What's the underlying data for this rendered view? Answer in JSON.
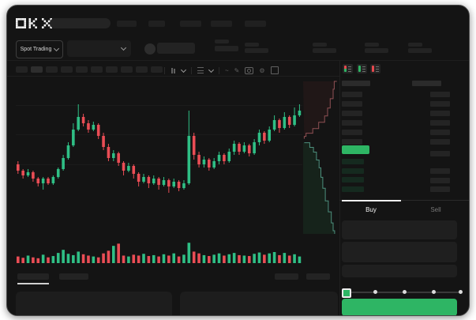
{
  "header": {
    "logo_text": "OKX",
    "search_placeholder": "",
    "nav_pill_count": 5
  },
  "market_bar": {
    "market_type_label": "Spot Trading",
    "chevron_icon": "chevron-down"
  },
  "chart_toolbar": {
    "timeframe_pill_count": 10,
    "active_pill_index": 1,
    "icons": [
      "candle-type-icon",
      "chevron-down-icon",
      "indicators-icon",
      "chevron-down-icon",
      "line-style-icon",
      "draw-icon",
      "camera-icon",
      "settings-icon",
      "fullscreen-icon"
    ]
  },
  "order_book": {
    "display_mode_icons": [
      "book-both-icon",
      "book-bids-icon",
      "book-asks-icon"
    ],
    "ask_row_count": 6,
    "bid_row_count": 4,
    "bid_right_row_count": 3,
    "has_last_price_highlight": true
  },
  "trade_panel": {
    "tabs": [
      {
        "label": "Buy",
        "active": true
      },
      {
        "label": "Sell",
        "active": false
      }
    ],
    "input_box_count": 3,
    "slider": {
      "positions": 5,
      "selected_index": 0
    },
    "submit_button_label": ""
  },
  "bottom_bar": {
    "tab_pill_count": 2,
    "active_tab_index": 0,
    "right_pill_count": 2,
    "panel_count": 2
  },
  "colors": {
    "app_bg": "#141414",
    "accent_green": "#2eb564",
    "candle_up": "#2fbf85",
    "candle_down": "#ea4d55",
    "depth_ask_line": "#8f5054",
    "depth_bid_line": "#4d8f7d",
    "bid_tint": "#152a1f",
    "placeholder": "#232323"
  },
  "chart_data": [
    {
      "type": "candlestick",
      "title": "",
      "axis_labels_visible": false,
      "unit": "relative-price-0-100",
      "candles_ohlc": [
        [
          44,
          46,
          38,
          40
        ],
        [
          40,
          41,
          35,
          37
        ],
        [
          37,
          41,
          36,
          39
        ],
        [
          39,
          40,
          33,
          35
        ],
        [
          35,
          36,
          30,
          32
        ],
        [
          32,
          36,
          28,
          35
        ],
        [
          35,
          36,
          31,
          32
        ],
        [
          32,
          37,
          31,
          36
        ],
        [
          36,
          42,
          35,
          41
        ],
        [
          41,
          50,
          40,
          48
        ],
        [
          48,
          58,
          47,
          56
        ],
        [
          56,
          70,
          55,
          66
        ],
        [
          66,
          82,
          65,
          74
        ],
        [
          74,
          76,
          68,
          70
        ],
        [
          70,
          72,
          64,
          66
        ],
        [
          66,
          71,
          65,
          69
        ],
        [
          69,
          70,
          60,
          62
        ],
        [
          62,
          64,
          53,
          55
        ],
        [
          55,
          57,
          46,
          48
        ],
        [
          48,
          53,
          46,
          51
        ],
        [
          51,
          52,
          43,
          45
        ],
        [
          45,
          46,
          37,
          40
        ],
        [
          40,
          45,
          39,
          43
        ],
        [
          43,
          44,
          35,
          38
        ],
        [
          38,
          39,
          30,
          33
        ],
        [
          33,
          38,
          32,
          36
        ],
        [
          36,
          37,
          29,
          32
        ],
        [
          32,
          37,
          31,
          35
        ],
        [
          35,
          36,
          28,
          31
        ],
        [
          31,
          36,
          30,
          34
        ],
        [
          34,
          35,
          26,
          30
        ],
        [
          30,
          35,
          29,
          33
        ],
        [
          33,
          34,
          27,
          29
        ],
        [
          29,
          34,
          28,
          32
        ],
        [
          32,
          78,
          31,
          62
        ],
        [
          62,
          64,
          47,
          50
        ],
        [
          50,
          52,
          42,
          44
        ],
        [
          44,
          49,
          42,
          47
        ],
        [
          47,
          48,
          40,
          42
        ],
        [
          42,
          48,
          41,
          46
        ],
        [
          46,
          52,
          44,
          50
        ],
        [
          50,
          51,
          44,
          46
        ],
        [
          46,
          54,
          45,
          52
        ],
        [
          52,
          59,
          50,
          57
        ],
        [
          57,
          58,
          50,
          52
        ],
        [
          52,
          58,
          51,
          56
        ],
        [
          56,
          57,
          49,
          51
        ],
        [
          51,
          60,
          50,
          58
        ],
        [
          58,
          66,
          56,
          64
        ],
        [
          64,
          65,
          57,
          59
        ],
        [
          59,
          68,
          58,
          66
        ],
        [
          66,
          75,
          65,
          72
        ],
        [
          72,
          73,
          64,
          67
        ],
        [
          67,
          77,
          66,
          74
        ],
        [
          74,
          75,
          67,
          69
        ],
        [
          69,
          80,
          68,
          75
        ],
        [
          75,
          82,
          74,
          78
        ]
      ]
    },
    {
      "type": "bar",
      "name": "volume",
      "unit": "relative-0-100",
      "values": [
        30,
        24,
        34,
        26,
        22,
        38,
        26,
        32,
        46,
        60,
        42,
        36,
        52,
        40,
        34,
        30,
        26,
        44,
        56,
        78,
        88,
        34,
        30,
        38,
        34,
        42,
        32,
        36,
        30,
        40,
        34,
        44,
        30,
        38,
        92,
        52,
        44,
        36,
        32,
        38,
        44,
        34,
        40,
        46,
        36,
        34,
        32,
        42,
        48,
        38,
        44,
        50,
        36,
        46,
        34,
        40,
        30
      ]
    },
    {
      "type": "area",
      "name": "depth",
      "asks_xy": [
        [
          0.93,
          0.03
        ],
        [
          0.86,
          0.08
        ],
        [
          0.83,
          0.14
        ],
        [
          0.75,
          0.2
        ],
        [
          0.68,
          0.25
        ],
        [
          0.6,
          0.29
        ],
        [
          0.44,
          0.33
        ],
        [
          0.28,
          0.36
        ],
        [
          0.1,
          0.38
        ],
        [
          0.05,
          0.395
        ]
      ],
      "bids_xy": [
        [
          0.05,
          0.42
        ],
        [
          0.2,
          0.45
        ],
        [
          0.3,
          0.48
        ],
        [
          0.38,
          0.53
        ],
        [
          0.45,
          0.58
        ],
        [
          0.5,
          0.64
        ],
        [
          0.55,
          0.71
        ],
        [
          0.62,
          0.79
        ],
        [
          0.7,
          0.86
        ],
        [
          0.78,
          0.93
        ],
        [
          0.83,
          0.98
        ],
        [
          0.87,
          1.0
        ]
      ]
    }
  ]
}
